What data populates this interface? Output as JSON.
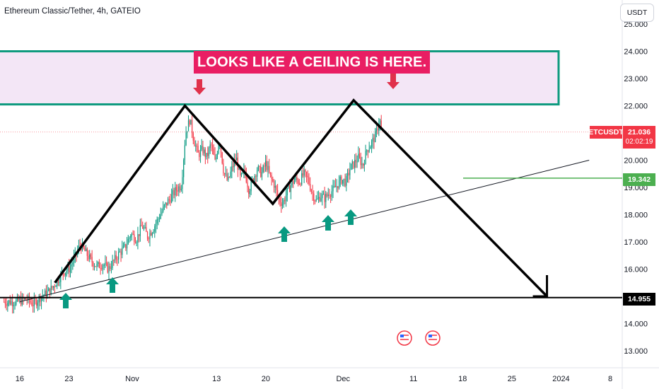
{
  "header": {
    "title": "Ethereum Classic/Tether, 4h, GATEIO",
    "currency": "USDT"
  },
  "price_badges": {
    "symbol": "ETCUSDT",
    "last_price": "21.036",
    "countdown": "02:02:19",
    "level_green": "19.342",
    "level_black": "14.955"
  },
  "annotation": {
    "text": "LOOKS LIKE A CEILING IS HERE."
  },
  "colors": {
    "up": "#089981",
    "down": "#f23645",
    "zone_fill": "#f3e6f6",
    "zone_border": "#0e9a7e",
    "annotation_bg": "#e91e63",
    "arrow_down": "#e0314b",
    "arrow_up": "#089981",
    "green_line": "#4caf50"
  },
  "icons": [
    "us-flag-event-icon",
    "us-flag-event-icon"
  ],
  "chart_data": {
    "type": "candlestick",
    "title": "",
    "ylim": [
      12.5,
      25.3
    ],
    "yticks": [
      13,
      14,
      15,
      16,
      17,
      18,
      19,
      20,
      21,
      22,
      23,
      24,
      25
    ],
    "ytick_labels": [
      "13.000",
      "14.000",
      "15.000",
      "16.000",
      "17.000",
      "18.000",
      "19.000",
      "20.000",
      "21.000",
      "22.000",
      "23.000",
      "24.000",
      "25.000"
    ],
    "xticks": [
      {
        "x": 16,
        "label": "16"
      },
      {
        "x": 23,
        "label": "23"
      },
      {
        "x": 32,
        "label": "Nov"
      },
      {
        "x": 44,
        "label": "13"
      },
      {
        "x": 51,
        "label": "20"
      },
      {
        "x": 62,
        "label": "Dec"
      },
      {
        "x": 72,
        "label": "11"
      },
      {
        "x": 79,
        "label": "18"
      },
      {
        "x": 86,
        "label": "25"
      },
      {
        "x": 93,
        "label": "2024"
      },
      {
        "x": 100,
        "label": "8"
      }
    ],
    "price_path": [
      [
        13.6,
        14.8
      ],
      [
        15.5,
        14.8
      ],
      [
        17.0,
        14.9
      ],
      [
        18.0,
        14.7
      ],
      [
        19.0,
        15.0
      ],
      [
        19.8,
        15.1
      ],
      [
        20.6,
        15.3
      ],
      [
        21.4,
        15.6
      ],
      [
        22.2,
        15.9
      ],
      [
        23.0,
        16.0
      ],
      [
        23.8,
        16.4
      ],
      [
        24.6,
        16.9
      ],
      [
        25.4,
        16.6
      ],
      [
        26.2,
        16.3
      ],
      [
        27.0,
        16.1
      ],
      [
        27.8,
        16.2
      ],
      [
        28.6,
        16.0
      ],
      [
        29.4,
        16.3
      ],
      [
        30.2,
        16.6
      ],
      [
        31.0,
        16.8
      ],
      [
        31.8,
        17.3
      ],
      [
        32.6,
        17.1
      ],
      [
        33.4,
        17.6
      ],
      [
        34.2,
        17.2
      ],
      [
        35.0,
        17.5
      ],
      [
        35.8,
        17.9
      ],
      [
        36.6,
        18.3
      ],
      [
        37.4,
        18.6
      ],
      [
        38.2,
        18.9
      ],
      [
        39.0,
        19.1
      ],
      [
        39.6,
        21.0
      ],
      [
        40.2,
        21.5
      ],
      [
        40.8,
        20.7
      ],
      [
        41.4,
        20.2
      ],
      [
        42.0,
        20.4
      ],
      [
        42.6,
        20.1
      ],
      [
        43.2,
        20.6
      ],
      [
        43.8,
        19.9
      ],
      [
        44.4,
        20.8
      ],
      [
        45.0,
        19.6
      ],
      [
        45.6,
        19.2
      ],
      [
        46.2,
        19.7
      ],
      [
        46.8,
        20.1
      ],
      [
        47.4,
        19.3
      ],
      [
        48.0,
        19.6
      ],
      [
        48.6,
        18.9
      ],
      [
        49.2,
        19.3
      ],
      [
        49.8,
        19.7
      ],
      [
        50.4,
        19.5
      ],
      [
        51.0,
        19.9
      ],
      [
        51.6,
        19.4
      ],
      [
        52.2,
        19.1
      ],
      [
        52.8,
        18.6
      ],
      [
        53.4,
        18.4
      ],
      [
        54.0,
        18.8
      ],
      [
        54.6,
        19.1
      ],
      [
        55.2,
        19.3
      ],
      [
        55.8,
        19.2
      ],
      [
        56.4,
        19.5
      ],
      [
        57.0,
        19.3
      ],
      [
        57.6,
        18.8
      ],
      [
        58.2,
        18.5
      ],
      [
        58.8,
        18.7
      ],
      [
        59.4,
        18.6
      ],
      [
        60.0,
        18.8
      ],
      [
        60.6,
        18.9
      ],
      [
        61.2,
        19.1
      ],
      [
        61.8,
        19.3
      ],
      [
        62.4,
        19.2
      ],
      [
        63.0,
        19.7
      ],
      [
        63.6,
        19.9
      ],
      [
        64.2,
        20.1
      ],
      [
        64.8,
        19.8
      ],
      [
        65.4,
        20.4
      ],
      [
        66.0,
        20.6
      ],
      [
        66.6,
        20.9
      ],
      [
        67.2,
        21.5
      ],
      [
        67.5,
        21.036
      ]
    ],
    "series": [
      {
        "name": "",
        "type": "zone",
        "y_range": [
          22.05,
          24.0
        ]
      },
      {
        "name": "",
        "type": "level",
        "value": 19.342
      },
      {
        "name": "",
        "type": "level",
        "value": 14.955
      },
      {
        "name": "",
        "type": "trendline",
        "points": [
          [
            16,
            14.8
          ],
          [
            97,
            20.0
          ]
        ]
      },
      {
        "name": "",
        "type": "projection",
        "points": [
          [
            21,
            15.5
          ],
          [
            39.5,
            22.0
          ],
          [
            52,
            18.4
          ],
          [
            63.5,
            22.2
          ],
          [
            91,
            15.0
          ]
        ]
      }
    ],
    "last_price": 21.036
  }
}
